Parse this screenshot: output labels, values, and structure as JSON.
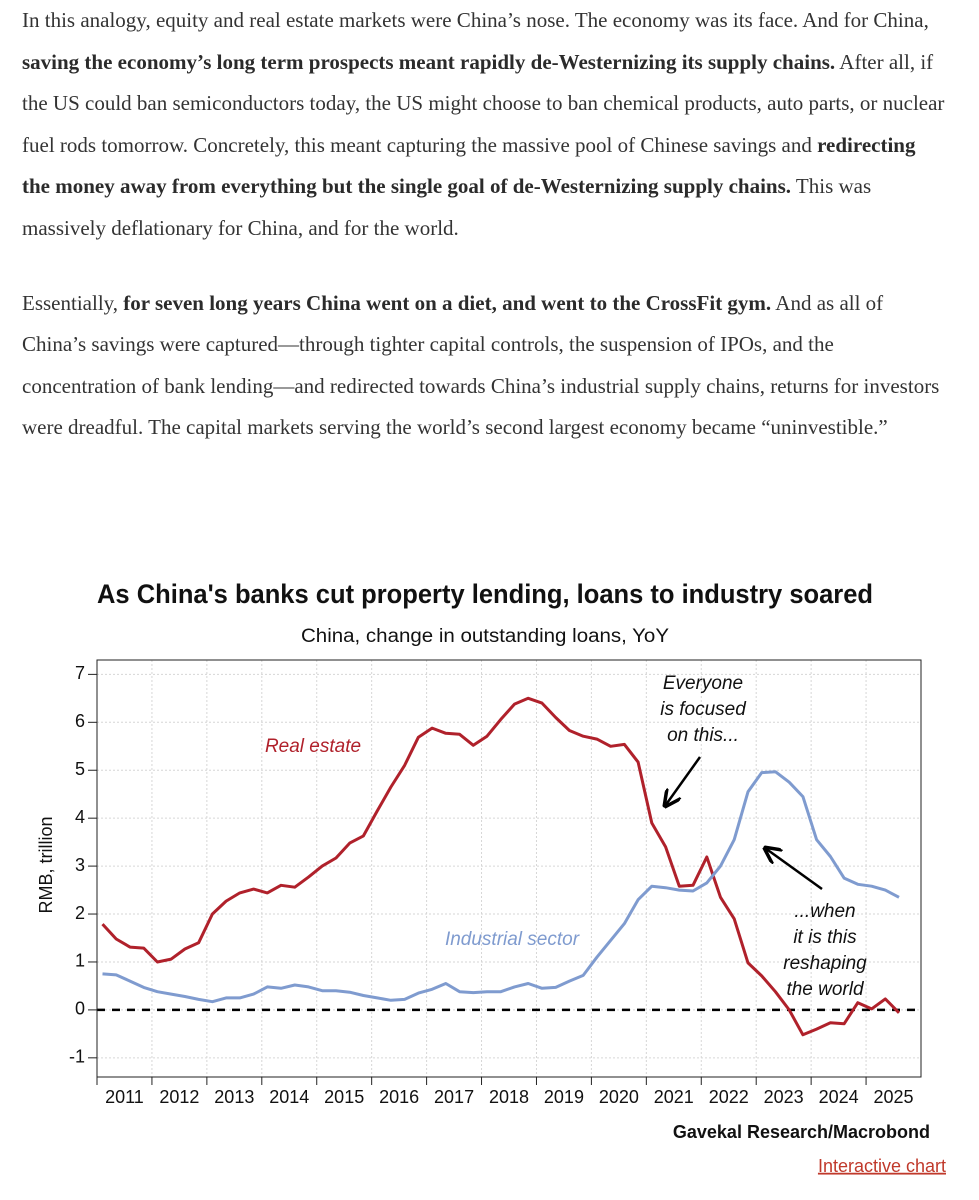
{
  "document": {
    "paragraphs": [
      [
        {
          "text": "In this analogy, equity and real estate markets were China’s nose. The economy was its face. And for China, ",
          "bold": false
        },
        {
          "text": "saving the economy’s long term prospects meant rapidly de-Westernizing its supply chains.",
          "bold": true
        },
        {
          "text": " After all, if the US could ban semiconductors today, the US might choose to ban chemical products, auto parts, or nuclear fuel rods tomorrow. Concretely, this meant capturing the massive pool of Chinese savings and ",
          "bold": false
        },
        {
          "text": "redirecting the money away from everything but the single goal of de-Westernizing supply chains.",
          "bold": true
        },
        {
          "text": " This was massively deflationary for China, and for the world.",
          "bold": false
        }
      ],
      [
        {
          "text": "Essentially, ",
          "bold": false
        },
        {
          "text": "for seven long years China went on a diet, and went to the CrossFit gym.",
          "bold": true
        },
        {
          "text": " And as all of China’s savings were captured—through tighter capital controls, the suspension of IPOs, and the concentration of bank lending—and redirected towards China’s industrial supply chains, returns for investors were dreadful. The capital markets serving the world’s second largest economy became “uninvestible.”",
          "bold": false
        }
      ]
    ],
    "source": "Gavekal Research/Macrobond",
    "link": "Interactive chart"
  },
  "chart_data": {
    "type": "line",
    "title": "As China's banks cut property lending, loans to industry soared",
    "subtitle": "China, change in outstanding loans, YoY",
    "y_label": "RMB, trillion",
    "x": [
      2011.1,
      2011.35,
      2011.6,
      2011.85,
      2012.1,
      2012.35,
      2012.6,
      2012.85,
      2013.1,
      2013.35,
      2013.6,
      2013.85,
      2014.1,
      2014.35,
      2014.6,
      2014.85,
      2015.1,
      2015.35,
      2015.6,
      2015.85,
      2016.1,
      2016.35,
      2016.6,
      2016.85,
      2017.1,
      2017.35,
      2017.6,
      2017.85,
      2018.1,
      2018.35,
      2018.6,
      2018.85,
      2019.1,
      2019.35,
      2019.6,
      2019.85,
      2020.1,
      2020.35,
      2020.6,
      2020.85,
      2021.1,
      2021.35,
      2021.6,
      2021.85,
      2022.1,
      2022.35,
      2022.6,
      2022.85,
      2023.1,
      2023.35,
      2023.6,
      2023.85,
      2024.1,
      2024.35,
      2024.6,
      2024.85,
      2025.1,
      2025.35,
      2025.6
    ],
    "series": [
      {
        "name": "Real estate",
        "color": "#b0212b",
        "values": [
          1.79,
          1.48,
          1.31,
          1.29,
          1.0,
          1.06,
          1.27,
          1.4,
          2.0,
          2.27,
          2.44,
          2.52,
          2.44,
          2.6,
          2.56,
          2.77,
          3.0,
          3.17,
          3.48,
          3.63,
          4.15,
          4.65,
          5.1,
          5.69,
          5.88,
          5.77,
          5.75,
          5.52,
          5.71,
          6.06,
          6.38,
          6.5,
          6.4,
          6.1,
          5.83,
          5.71,
          5.65,
          5.5,
          5.54,
          5.17,
          3.9,
          3.4,
          2.58,
          2.6,
          3.19,
          2.35,
          1.9,
          0.98,
          0.71,
          0.38,
          0.0,
          -0.52,
          -0.4,
          -0.27,
          -0.29,
          0.15,
          0.02,
          0.23,
          -0.06
        ]
      },
      {
        "name": "Industrial sector",
        "color": "#7f9bcf",
        "values": [
          0.75,
          0.73,
          0.6,
          0.47,
          0.38,
          0.33,
          0.28,
          0.22,
          0.17,
          0.25,
          0.25,
          0.33,
          0.48,
          0.45,
          0.52,
          0.48,
          0.4,
          0.4,
          0.37,
          0.3,
          0.25,
          0.2,
          0.22,
          0.35,
          0.43,
          0.55,
          0.38,
          0.36,
          0.38,
          0.38,
          0.48,
          0.55,
          0.45,
          0.47,
          0.6,
          0.72,
          1.1,
          1.45,
          1.8,
          2.3,
          2.58,
          2.55,
          2.5,
          2.48,
          2.65,
          3.0,
          3.55,
          4.55,
          4.95,
          4.97,
          4.75,
          4.45,
          3.55,
          3.2,
          2.75,
          2.62,
          2.58,
          2.5,
          2.35
        ]
      }
    ],
    "annotations": [
      [
        "Everyone",
        "is focused",
        "on this..."
      ],
      [
        "...when",
        "it is this",
        "reshaping",
        "the world"
      ]
    ],
    "xlim": [
      2011,
      2026
    ],
    "xticks": [
      2011,
      2012,
      2013,
      2014,
      2015,
      2016,
      2017,
      2018,
      2019,
      2020,
      2021,
      2022,
      2023,
      2024,
      2025
    ],
    "ylim": [
      -1.4,
      7.3
    ],
    "yticks": [
      -1,
      0,
      1,
      2,
      3,
      4,
      5,
      6,
      7
    ],
    "grid": true,
    "zero_line": true
  }
}
